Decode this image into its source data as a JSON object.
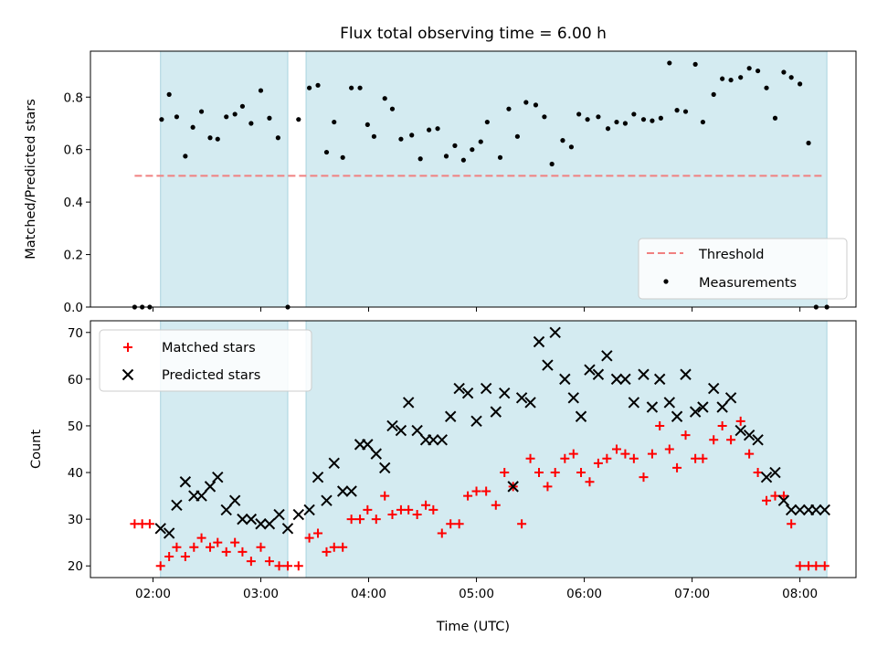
{
  "chart_data": {
    "title": "Flux total observing time = 6.00 h",
    "xlabel": "Time (UTC)",
    "xticks": [
      "02:00",
      "03:00",
      "04:00",
      "05:00",
      "06:00",
      "07:00",
      "08:00"
    ],
    "xtick_hours": [
      2,
      3,
      4,
      5,
      6,
      7,
      8
    ],
    "xlim": [
      1.42,
      8.52
    ],
    "shaded_intervals": [
      [
        2.07,
        3.25
      ],
      [
        3.42,
        8.25
      ]
    ],
    "shade_color": "#d4ebf1",
    "panels": [
      {
        "type": "scatter",
        "ylabel": "Matched/Predicted stars",
        "ylim": [
          0,
          0.975
        ],
        "yticks": [
          "0.0",
          "0.2",
          "0.4",
          "0.6",
          "0.8"
        ],
        "ytick_values": [
          0,
          0.2,
          0.4,
          0.6,
          0.8
        ],
        "threshold": {
          "name": "Threshold",
          "value": 0.5,
          "x_range": [
            1.83,
            8.23
          ],
          "color": "#f08080"
        },
        "legend": [
          "Threshold",
          "Measurements"
        ],
        "legend_position": "lower right",
        "series": [
          {
            "name": "Measurements",
            "color": "#000000",
            "x": [
              1.83,
              1.9,
              1.97,
              2.08,
              2.15,
              2.22,
              2.3,
              2.37,
              2.45,
              2.53,
              2.6,
              2.68,
              2.76,
              2.83,
              2.91,
              3.0,
              3.08,
              3.16,
              3.25,
              3.35,
              3.45,
              3.53,
              3.61,
              3.68,
              3.76,
              3.84,
              3.92,
              3.99,
              4.05,
              4.15,
              4.22,
              4.3,
              4.4,
              4.48,
              4.56,
              4.64,
              4.72,
              4.8,
              4.88,
              4.96,
              5.04,
              5.1,
              5.22,
              5.3,
              5.38,
              5.46,
              5.55,
              5.63,
              5.7,
              5.8,
              5.88,
              5.95,
              6.03,
              6.13,
              6.22,
              6.3,
              6.38,
              6.46,
              6.55,
              6.63,
              6.71,
              6.79,
              6.86,
              6.94,
              7.03,
              7.1,
              7.2,
              7.28,
              7.36,
              7.45,
              7.53,
              7.61,
              7.69,
              7.77,
              7.85,
              7.92,
              8.0,
              8.08,
              8.15,
              8.25
            ],
            "y": [
              0.0,
              0.0,
              0.0,
              0.715,
              0.81,
              0.725,
              0.575,
              0.685,
              0.745,
              0.645,
              0.64,
              0.725,
              0.735,
              0.765,
              0.7,
              0.825,
              0.72,
              0.645,
              0.0,
              0.715,
              0.835,
              0.845,
              0.59,
              0.705,
              0.57,
              0.835,
              0.835,
              0.695,
              0.65,
              0.795,
              0.755,
              0.64,
              0.655,
              0.565,
              0.675,
              0.68,
              0.575,
              0.615,
              0.56,
              0.6,
              0.63,
              0.705,
              0.57,
              0.755,
              0.65,
              0.78,
              0.77,
              0.725,
              0.545,
              0.635,
              0.61,
              0.735,
              0.715,
              0.725,
              0.68,
              0.705,
              0.7,
              0.735,
              0.715,
              0.71,
              0.72,
              0.93,
              0.75,
              0.745,
              0.925,
              0.705,
              0.81,
              0.87,
              0.865,
              0.875,
              0.91,
              0.9,
              0.835,
              0.72,
              0.895,
              0.875,
              0.85,
              0.625,
              0.0,
              0.0
            ]
          }
        ]
      },
      {
        "type": "scatter",
        "ylabel": "Count",
        "ylim": [
          17.5,
          72.5
        ],
        "yticks": [
          "20",
          "30",
          "40",
          "50",
          "60",
          "70"
        ],
        "ytick_values": [
          20,
          30,
          40,
          50,
          60,
          70
        ],
        "legend": [
          "Matched stars",
          "Predicted stars"
        ],
        "legend_position": "upper left",
        "series": [
          {
            "name": "Matched stars",
            "marker": "+",
            "color": "#ff0000",
            "x": [
              1.83,
              1.9,
              1.97,
              2.07,
              2.15,
              2.22,
              2.3,
              2.38,
              2.45,
              2.53,
              2.6,
              2.68,
              2.76,
              2.83,
              2.91,
              3.0,
              3.08,
              3.17,
              3.25,
              3.35,
              3.45,
              3.53,
              3.61,
              3.68,
              3.76,
              3.84,
              3.92,
              3.99,
              4.07,
              4.15,
              4.22,
              4.3,
              4.37,
              4.45,
              4.53,
              4.6,
              4.68,
              4.76,
              4.84,
              4.92,
              5.0,
              5.09,
              5.18,
              5.26,
              5.34,
              5.42,
              5.5,
              5.58,
              5.66,
              5.73,
              5.82,
              5.9,
              5.97,
              6.05,
              6.13,
              6.21,
              6.3,
              6.38,
              6.46,
              6.55,
              6.63,
              6.7,
              6.79,
              6.86,
              6.94,
              7.03,
              7.1,
              7.2,
              7.28,
              7.36,
              7.45,
              7.53,
              7.61,
              7.69,
              7.77,
              7.85,
              7.92,
              8.0,
              8.08,
              8.15,
              8.23
            ],
            "y": [
              29,
              29,
              29,
              20,
              22,
              24,
              22,
              24,
              26,
              24,
              25,
              23,
              25,
              23,
              21,
              24,
              21,
              20,
              20,
              20,
              26,
              27,
              23,
              24,
              24,
              30,
              30,
              32,
              30,
              35,
              31,
              32,
              32,
              31,
              33,
              32,
              27,
              29,
              29,
              35,
              36,
              36,
              33,
              40,
              37,
              29,
              43,
              40,
              37,
              40,
              43,
              44,
              40,
              38,
              42,
              43,
              45,
              44,
              43,
              39,
              44,
              50,
              45,
              41,
              48,
              43,
              43,
              47,
              50,
              47,
              51,
              44,
              40,
              34,
              35,
              35,
              29,
              20,
              20,
              20,
              20
            ]
          },
          {
            "name": "Predicted stars",
            "marker": "x",
            "color": "#000000",
            "x": [
              2.07,
              2.15,
              2.22,
              2.3,
              2.38,
              2.45,
              2.53,
              2.6,
              2.68,
              2.76,
              2.83,
              2.91,
              3.0,
              3.08,
              3.17,
              3.25,
              3.35,
              3.45,
              3.53,
              3.61,
              3.68,
              3.76,
              3.84,
              3.92,
              3.99,
              4.07,
              4.15,
              4.22,
              4.3,
              4.37,
              4.45,
              4.53,
              4.6,
              4.68,
              4.76,
              4.84,
              4.92,
              5.0,
              5.09,
              5.18,
              5.26,
              5.34,
              5.42,
              5.5,
              5.58,
              5.66,
              5.73,
              5.82,
              5.9,
              5.97,
              6.05,
              6.13,
              6.21,
              6.3,
              6.38,
              6.46,
              6.55,
              6.63,
              6.7,
              6.79,
              6.86,
              6.94,
              7.03,
              7.1,
              7.2,
              7.28,
              7.36,
              7.45,
              7.53,
              7.61,
              7.69,
              7.77,
              7.85,
              7.92,
              8.0,
              8.08,
              8.15,
              8.23
            ],
            "y": [
              28,
              27,
              33,
              38,
              35,
              35,
              37,
              39,
              32,
              34,
              30,
              30,
              29,
              29,
              31,
              28,
              31,
              32,
              39,
              34,
              42,
              36,
              36,
              46,
              46,
              44,
              41,
              50,
              49,
              55,
              49,
              47,
              47,
              47,
              52,
              58,
              57,
              51,
              58,
              53,
              57,
              37,
              56,
              55,
              68,
              63,
              70,
              60,
              56,
              52,
              62,
              61,
              65,
              60,
              60,
              55,
              61,
              54,
              60,
              55,
              52,
              61,
              53,
              54,
              58,
              54,
              56,
              49,
              48,
              47,
              39,
              40,
              34,
              32,
              32,
              32,
              32,
              32
            ]
          }
        ]
      }
    ]
  }
}
